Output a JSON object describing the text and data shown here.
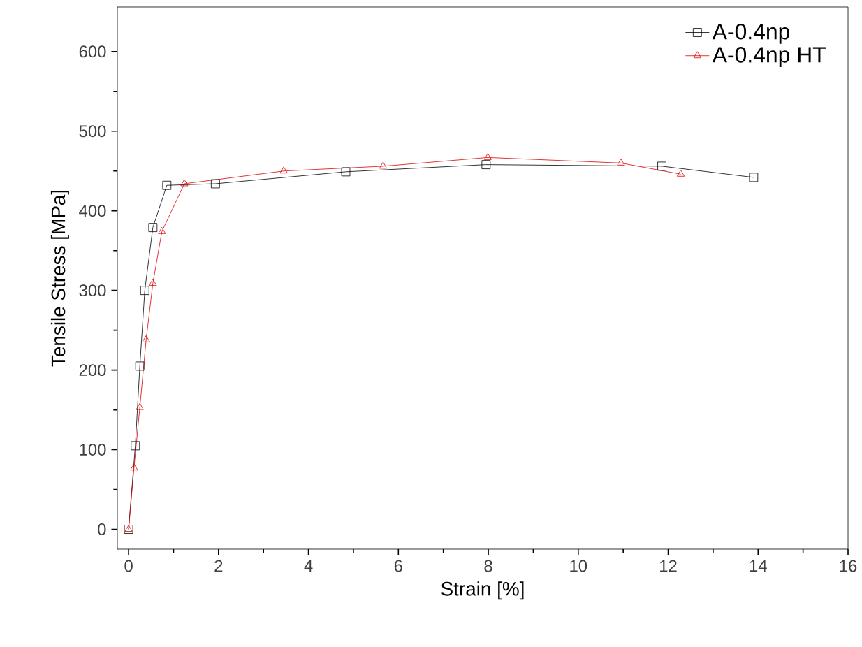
{
  "chart_data": {
    "type": "line",
    "xlabel": "Strain [%]",
    "ylabel": "Tensile Stress [MPa]",
    "xlim": [
      -0.25,
      16
    ],
    "ylim": [
      -25,
      656
    ],
    "xticks": [
      0,
      2,
      4,
      6,
      8,
      10,
      12,
      14,
      16
    ],
    "yticks": [
      0,
      100,
      200,
      300,
      400,
      500,
      600
    ],
    "grid": false,
    "legend": "top right",
    "series": [
      {
        "name": "A-0.4np",
        "color": "#000000",
        "marker": "square",
        "x": [
          0,
          0.15,
          0.25,
          0.36,
          0.54,
          0.85,
          1.93,
          4.83,
          7.95,
          11.86,
          13.9
        ],
        "values": [
          0,
          105,
          205,
          300,
          379,
          432,
          434,
          449,
          458,
          456,
          442
        ]
      },
      {
        "name": "A-0.4np HT",
        "color": "#e00000",
        "marker": "triangle",
        "x": [
          0,
          0.12,
          0.25,
          0.39,
          0.54,
          0.74,
          1.24,
          3.45,
          5.66,
          7.99,
          10.95,
          12.28
        ],
        "values": [
          0,
          77,
          153,
          238,
          309,
          374,
          434,
          450,
          456,
          467,
          460,
          446
        ]
      }
    ]
  }
}
